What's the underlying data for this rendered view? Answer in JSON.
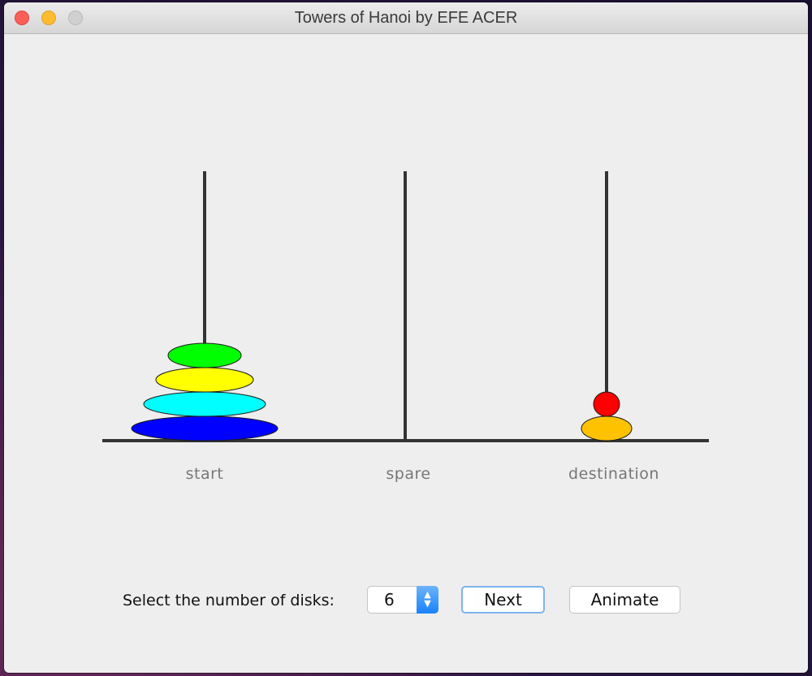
{
  "window": {
    "title": "Towers of Hanoi by EFE ACER"
  },
  "pegs": [
    {
      "label": "start"
    },
    {
      "label": "spare"
    },
    {
      "label": "destination"
    }
  ],
  "disks": [
    {
      "peg": 0,
      "level": 0,
      "color": "#0000ff"
    },
    {
      "peg": 0,
      "level": 1,
      "color": "#00ffff"
    },
    {
      "peg": 0,
      "level": 2,
      "color": "#ffff00"
    },
    {
      "peg": 0,
      "level": 3,
      "color": "#00ff00"
    },
    {
      "peg": 2,
      "level": 0,
      "color": "#ffc200"
    },
    {
      "peg": 2,
      "level": 1,
      "color": "#ff0000"
    }
  ],
  "controls": {
    "label": "Select the number of disks:",
    "disk_count": "6",
    "next_label": "Next",
    "animate_label": "Animate"
  }
}
